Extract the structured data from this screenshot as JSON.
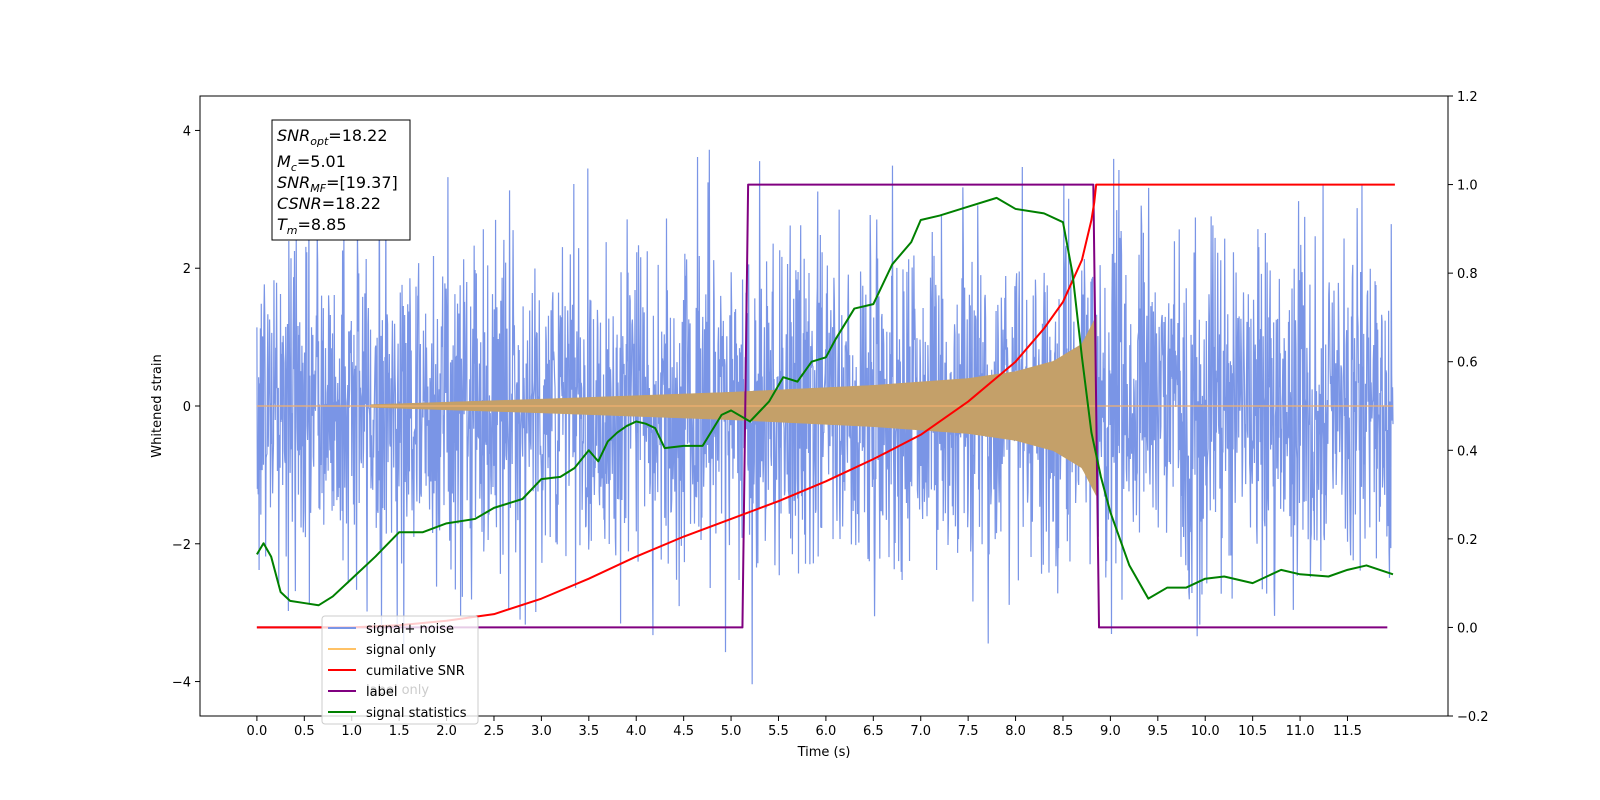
{
  "chart_data": {
    "type": "line",
    "xlabel": "Time (s)",
    "ylabel": "Whitened strain",
    "xlim": [
      -0.6,
      12.56
    ],
    "ylim": [
      -4.5,
      4.5
    ],
    "y2lim": [
      -0.2,
      1.2
    ],
    "xticks": [
      "0.0",
      "0.5",
      "1.0",
      "1.5",
      "2.0",
      "2.5",
      "3.0",
      "3.5",
      "4.0",
      "4.5",
      "5.0",
      "5.5",
      "6.0",
      "6.5",
      "7.0",
      "7.5",
      "8.0",
      "8.5",
      "9.0",
      "9.5",
      "10.0",
      "10.5",
      "11.0",
      "11.5"
    ],
    "yticks": [
      "4",
      "2",
      "0",
      "−2",
      "−4"
    ],
    "yticks_values": [
      4,
      2,
      0,
      -2,
      -4
    ],
    "y2ticks": [
      "1.2",
      "1.0",
      "0.8",
      "0.6",
      "0.4",
      "0.2",
      "0.0",
      "−0.2"
    ],
    "y2ticks_values": [
      1.2,
      1.0,
      0.8,
      0.6,
      0.4,
      0.2,
      0.0,
      -0.2
    ],
    "info_box": {
      "snr_opt": {
        "base": "SNR",
        "sub": "opt",
        "value": "=18.22"
      },
      "mc": {
        "base": "M",
        "sub": "c",
        "value": "=5.01"
      },
      "snr_mf": {
        "base": "SNR",
        "sub": "MF",
        "value": "=[19.37]"
      },
      "csnr": {
        "base": "CSNR",
        "sub": "",
        "value": "=18.22"
      },
      "tm": {
        "base": "T",
        "sub": "m",
        "value": "=8.85"
      }
    },
    "legend": {
      "placement": "lower-left",
      "entries": [
        {
          "name": "signal+ noise",
          "color": "#7a95e6"
        },
        {
          "name": "signal only",
          "color": "#ffc266"
        },
        {
          "name": "cumilative SNR",
          "color": "#ff0000"
        },
        {
          "name": "label",
          "color": "#800080"
        },
        {
          "name": "signal statistics",
          "color": "#008000"
        }
      ],
      "hidden_text": "label only"
    },
    "series": [
      {
        "name": "signal+ noise",
        "axis": "left",
        "color": "#7a95e6",
        "x_range": [
          0.0,
          11.98
        ],
        "noise_amplitude_estimate": 1.5,
        "max_peak": 3.76,
        "min_peak": -4.06
      },
      {
        "name": "signal only",
        "axis": "left",
        "color": "#c4a069",
        "signal_start": 1.2,
        "merger_time": 8.85,
        "envelope": {
          "x": [
            1.2,
            3.0,
            5.0,
            6.5,
            7.5,
            8.0,
            8.4,
            8.7,
            8.85
          ],
          "amp": [
            0.02,
            0.1,
            0.2,
            0.3,
            0.4,
            0.5,
            0.65,
            0.9,
            1.3
          ]
        }
      },
      {
        "name": "cumilative SNR",
        "axis": "right",
        "color": "#ff0000",
        "x": [
          0.0,
          1.0,
          1.5,
          2.0,
          2.5,
          3.0,
          3.5,
          4.0,
          4.5,
          5.0,
          5.5,
          6.0,
          6.5,
          7.0,
          7.5,
          8.0,
          8.3,
          8.5,
          8.7,
          8.8,
          8.83,
          8.85,
          12.0
        ],
        "y": [
          0.0,
          0.0,
          0.005,
          0.015,
          0.03,
          0.065,
          0.11,
          0.16,
          0.205,
          0.245,
          0.285,
          0.33,
          0.38,
          0.435,
          0.51,
          0.6,
          0.675,
          0.735,
          0.83,
          0.92,
          0.96,
          1.0,
          1.0
        ]
      },
      {
        "name": "label",
        "axis": "right",
        "color": "#800080",
        "x": [
          0.0,
          5.12,
          5.18,
          8.82,
          8.88,
          11.92
        ],
        "y": [
          0.0,
          0.0,
          1.0,
          1.0,
          0.0,
          0.0
        ]
      },
      {
        "name": "signal statistics",
        "axis": "right",
        "color": "#008000",
        "x": [
          0.0,
          0.07,
          0.15,
          0.25,
          0.35,
          0.5,
          0.65,
          0.8,
          1.0,
          1.25,
          1.5,
          1.75,
          2.0,
          2.3,
          2.5,
          2.8,
          3.0,
          3.2,
          3.35,
          3.5,
          3.6,
          3.7,
          3.8,
          3.9,
          4.0,
          4.1,
          4.2,
          4.3,
          4.5,
          4.7,
          4.9,
          5.0,
          5.2,
          5.4,
          5.55,
          5.7,
          5.85,
          6.0,
          6.1,
          6.3,
          6.5,
          6.7,
          6.9,
          7.0,
          7.2,
          7.5,
          7.8,
          8.0,
          8.3,
          8.5,
          8.6,
          8.7,
          8.8,
          8.9,
          9.0,
          9.1,
          9.2,
          9.4,
          9.6,
          9.8,
          10.0,
          10.2,
          10.5,
          10.8,
          11.0,
          11.3,
          11.5,
          11.7,
          11.98
        ],
        "y": [
          0.165,
          0.19,
          0.16,
          0.08,
          0.06,
          0.055,
          0.05,
          0.07,
          0.11,
          0.16,
          0.215,
          0.215,
          0.235,
          0.245,
          0.27,
          0.29,
          0.335,
          0.34,
          0.36,
          0.4,
          0.375,
          0.42,
          0.44,
          0.455,
          0.465,
          0.46,
          0.45,
          0.405,
          0.41,
          0.41,
          0.48,
          0.49,
          0.465,
          0.51,
          0.565,
          0.555,
          0.6,
          0.61,
          0.65,
          0.72,
          0.73,
          0.82,
          0.87,
          0.92,
          0.93,
          0.95,
          0.97,
          0.945,
          0.935,
          0.915,
          0.8,
          0.61,
          0.44,
          0.34,
          0.26,
          0.2,
          0.14,
          0.065,
          0.09,
          0.09,
          0.11,
          0.115,
          0.1,
          0.13,
          0.12,
          0.115,
          0.13,
          0.14,
          0.12
        ]
      }
    ]
  }
}
